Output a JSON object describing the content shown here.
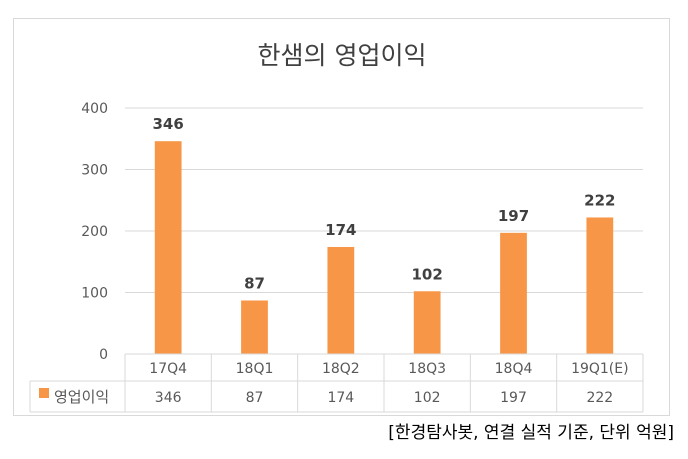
{
  "chart_data": {
    "type": "bar",
    "title": "한샘의 영업이익",
    "categories": [
      "17Q4",
      "18Q1",
      "18Q2",
      "18Q3",
      "18Q4",
      "19Q1(E)"
    ],
    "series": [
      {
        "name": "영업이익",
        "values": [
          346,
          87,
          174,
          102,
          197,
          222
        ],
        "color": "#F79646"
      }
    ],
    "ylim": [
      0,
      400
    ],
    "yticks": [
      0,
      100,
      200,
      300,
      400
    ],
    "grid": true,
    "data_labels": true,
    "data_table": true,
    "legend": "in data table"
  },
  "source_note": "[한경탐사봇, 연결 실적 기준, 단위 억원]"
}
